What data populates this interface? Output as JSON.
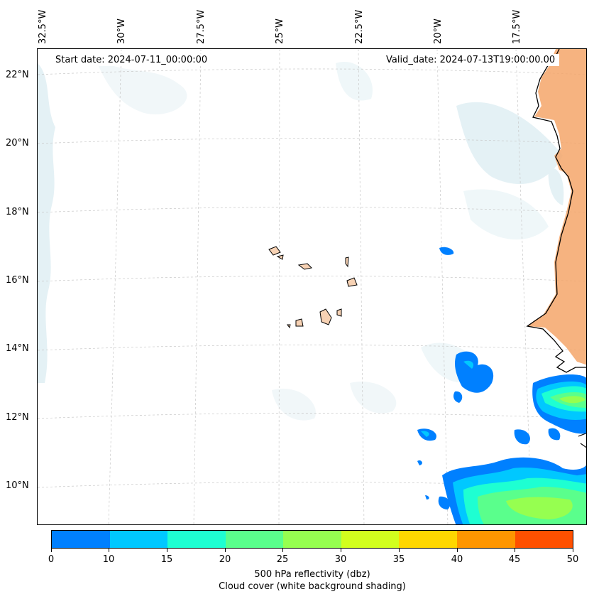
{
  "map": {
    "start_date_label": "Start date: 2024-07-11_00:00:00",
    "valid_date_label": "Valid_date: 2024-07-13T19:00:00.00",
    "longitude_labels": [
      "32.5°W",
      "30°W",
      "27.5°W",
      "25°W",
      "22.5°W",
      "20°W",
      "17.5°W"
    ],
    "latitude_labels": [
      "22°N",
      "20°N",
      "18°N",
      "16°N",
      "14°N",
      "12°N",
      "10°N"
    ],
    "land_color": "#f4a66a",
    "island_color": "#f7d2b4",
    "cloud_color": "#d8eaf0"
  },
  "colorbar": {
    "colors": [
      "#0080ff",
      "#00c8ff",
      "#1effd2",
      "#5aff8c",
      "#96ff50",
      "#d2ff1e",
      "#ffd700",
      "#ff9600",
      "#ff5000"
    ],
    "ticks": [
      "0",
      "10",
      "15",
      "20",
      "25",
      "30",
      "35",
      "40",
      "45",
      "50"
    ],
    "label_line1": "500 hPa reflectivity (dbz)",
    "label_line2": "Cloud cover (white background shading)"
  }
}
